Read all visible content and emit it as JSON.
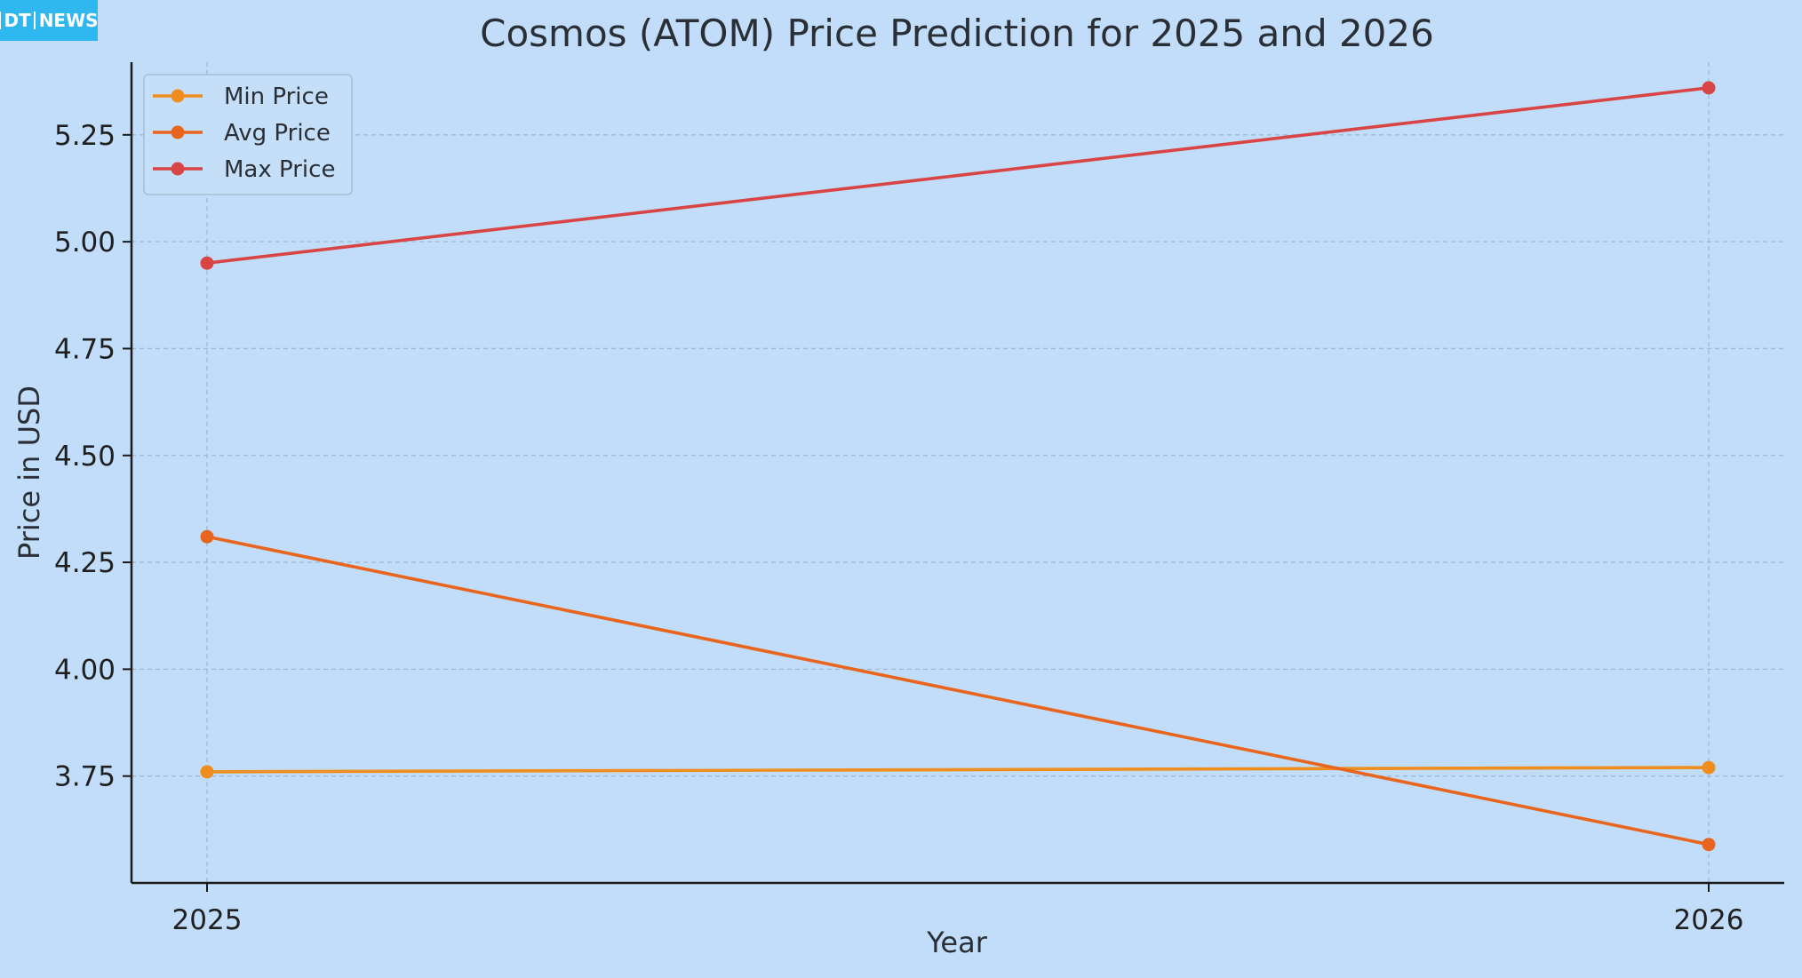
{
  "brand": {
    "logo_part1": "DT",
    "logo_part2": "NEWS"
  },
  "colors": {
    "background": "#c1ddf9",
    "brand": "#2fb8ef"
  },
  "chart_data": {
    "type": "line",
    "title": "Cosmos (ATOM) Price Prediction for 2025 and 2026",
    "xlabel": "Year",
    "ylabel": "Price in USD",
    "x": [
      2025,
      2026
    ],
    "x_tick_labels": [
      "2025",
      "2026"
    ],
    "y_ticks": [
      3.75,
      4.0,
      4.25,
      4.5,
      4.75,
      5.0,
      5.25
    ],
    "y_tick_labels": [
      "3.75",
      "4.00",
      "4.25",
      "4.50",
      "4.75",
      "5.00",
      "5.25"
    ],
    "ylim": [
      3.5,
      5.42
    ],
    "grid": true,
    "legend_position": "top-left",
    "series": [
      {
        "name": "Min Price",
        "color": "#ef8e1f",
        "values": [
          3.76,
          3.77
        ]
      },
      {
        "name": "Avg Price",
        "color": "#e9641c",
        "values": [
          4.31,
          3.59
        ]
      },
      {
        "name": "Max Price",
        "color": "#d94545",
        "values": [
          4.95,
          5.36
        ]
      }
    ]
  }
}
